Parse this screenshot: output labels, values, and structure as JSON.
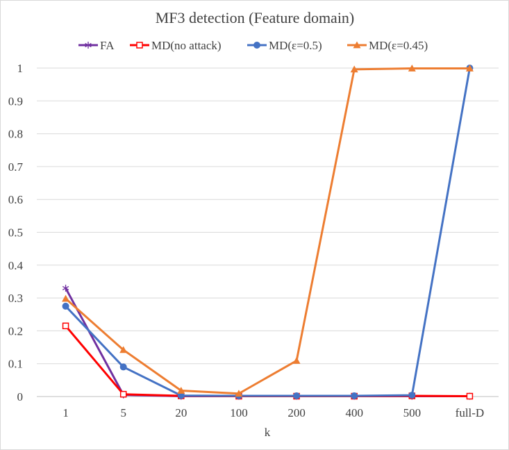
{
  "chart_data": {
    "type": "line",
    "title": "MF3 detection (Feature domain)",
    "xlabel": "k",
    "ylabel": "",
    "categories": [
      "1",
      "5",
      "20",
      "100",
      "200",
      "400",
      "500",
      "full-D"
    ],
    "ylim": [
      0,
      1
    ],
    "yticks": [
      0,
      0.1,
      0.2,
      0.3,
      0.4,
      0.5,
      0.6,
      0.7,
      0.8,
      0.9,
      1
    ],
    "ytick_labels": [
      "0",
      "0.1",
      "0.2",
      "0.3",
      "0.4",
      "0.5",
      "0.6",
      "0.7",
      "0.8",
      "0.9",
      "1"
    ],
    "grid": "horizontal",
    "legend_position": "top",
    "series": [
      {
        "name": "FA",
        "color": "#7030a0",
        "marker": "star",
        "values": [
          0.33,
          0.005,
          0.001,
          0.001,
          0.001,
          0.001,
          0.001,
          0.001
        ]
      },
      {
        "name": "MD(no attack)",
        "color": "#ff0000",
        "marker": "open-square",
        "values": [
          0.215,
          0.007,
          0.002,
          0.001,
          0.001,
          0.001,
          0.002,
          0.001
        ]
      },
      {
        "name": "MD(ε=0.5)",
        "color": "#4472c4",
        "marker": "circle",
        "values": [
          0.275,
          0.09,
          0.003,
          0.002,
          0.002,
          0.002,
          0.004,
          1.0
        ]
      },
      {
        "name": "MD(ε=0.45)",
        "color": "#ed7d31",
        "marker": "triangle",
        "values": [
          0.298,
          0.142,
          0.018,
          0.009,
          0.109,
          0.996,
          0.999,
          0.999
        ]
      }
    ]
  }
}
